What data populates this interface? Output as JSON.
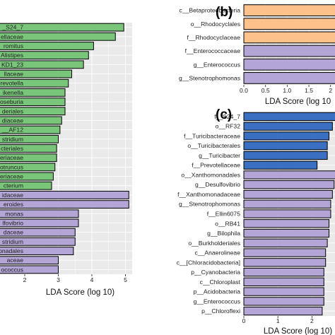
{
  "chart_data": [
    {
      "type": "bar",
      "orientation": "horizontal",
      "panel_label": "",
      "xlabel": "LDA Score (log 10)",
      "xlim": [
        0,
        5.2
      ],
      "xticks": [
        0,
        1,
        2,
        3,
        4,
        5
      ],
      "ylabel": "",
      "grid": true,
      "categories": [
        "S24_7",
        "ellaceae",
        "romitus",
        "Alistipes",
        "KD1_23",
        "llaceae",
        "revotella",
        "ikenella",
        "oseburia",
        "deriales",
        "diaceae",
        "AF12",
        "stridium",
        "cteriales",
        "acteriaceae",
        "otruncus",
        "bacteriaceae",
        "cterium",
        "idaceae",
        "eroides",
        "monas",
        "sulfovibrio",
        "daceae",
        "stridium",
        "monadales",
        "aceae",
        "coccus"
      ],
      "categories_text": [
        "_S24_7",
        "ellaceae",
        "romitus",
        "Alistipes",
        "KD1_23",
        "llaceae",
        "revotella",
        "ikenella",
        "oseburia",
        "deriales",
        "diaceae",
        "__AF12",
        "stridium",
        "cteriales",
        "acteriaceae",
        "otruncus",
        "bacteriaceae",
        "cterium",
        "idaceae",
        "eroides",
        "monas",
        "lfovibrio",
        "daceae",
        "stridium",
        "monadales",
        "aceae",
        "ococcus"
      ],
      "values": [
        4.95,
        4.7,
        4.05,
        3.9,
        3.75,
        3.4,
        3.3,
        3.2,
        3.2,
        3.2,
        3.1,
        3.05,
        3.0,
        2.95,
        2.95,
        2.9,
        2.85,
        2.8,
        5.1,
        5.1,
        3.6,
        3.6,
        3.5,
        3.5,
        3.45,
        3.0,
        3.0
      ],
      "colors": [
        "#79c67a",
        "#79c67a",
        "#79c67a",
        "#79c67a",
        "#79c67a",
        "#79c67a",
        "#79c67a",
        "#79c67a",
        "#79c67a",
        "#79c67a",
        "#79c67a",
        "#79c67a",
        "#79c67a",
        "#79c67a",
        "#79c67a",
        "#79c67a",
        "#79c67a",
        "#79c67a",
        "#b3a5d6",
        "#b3a5d6",
        "#b3a5d6",
        "#b3a5d6",
        "#b3a5d6",
        "#b3a5d6",
        "#b3a5d6",
        "#b3a5d6",
        "#b3a5d6"
      ]
    },
    {
      "type": "bar",
      "orientation": "horizontal",
      "panel_label": "(b)",
      "xlabel": "LDA Score (log 10",
      "xlim": [
        0,
        2.2
      ],
      "xticks": [
        0,
        0.5,
        1,
        1.5,
        2
      ],
      "xticklabels": [
        "0.0",
        "0.5",
        "1.0",
        "1.5",
        "2"
      ],
      "ylabel": "",
      "grid": true,
      "categories": [
        "c__Betaproteobacteria",
        "o__Rhodocyclales",
        "f__Rhodocyclaceae",
        "f__Enterococcaceae",
        "g__Enterococcus",
        "g__Stenotrophomonas"
      ],
      "values": [
        2.2,
        2.2,
        2.2,
        2.2,
        2.2,
        2.2
      ],
      "colors": [
        "#fdc18b",
        "#fdc18b",
        "#fdc18b",
        "#b3a5d6",
        "#b3a5d6",
        "#b3a5d6"
      ]
    },
    {
      "type": "bar",
      "orientation": "horizontal",
      "panel_label": "(c)",
      "xlabel": "LDA Score (log 10)",
      "xlim": [
        0,
        2.8
      ],
      "xticks": [
        0,
        1,
        2
      ],
      "ylabel": "",
      "grid": true,
      "categories": [
        "f__S24_7",
        "o__RF32",
        "f__Turicibacteraceae",
        "o__Turicibacterales",
        "g__Turicibacter",
        "f__Prevotellaceae",
        "o__Xanthomonadales",
        "g__Desulfovibrio",
        "f__Xanthomonadaceae",
        "g__Stenotrophomonas",
        "f__Ellin6075",
        "o__RB41",
        "g__Bilophila",
        "o__Burkholderiales",
        "c__Anaerolineae",
        "c__[Chloracidobacteria]",
        "p__Cyanobacteria",
        "c__Chloroplast",
        "p__Acidobacteria",
        "g__Enterococcus",
        "p__Chloroflexi"
      ],
      "values": [
        2.7,
        2.6,
        2.5,
        2.45,
        2.45,
        2.15,
        2.7,
        2.65,
        2.6,
        2.55,
        2.55,
        2.5,
        2.5,
        2.45,
        2.4,
        2.4,
        2.35,
        2.35,
        2.35,
        2.35,
        2.3
      ],
      "colors": [
        "#3a6fc2",
        "#3a6fc2",
        "#3a6fc2",
        "#3a6fc2",
        "#3a6fc2",
        "#3a6fc2",
        "#b3a5d6",
        "#b3a5d6",
        "#b3a5d6",
        "#b3a5d6",
        "#b3a5d6",
        "#b3a5d6",
        "#b3a5d6",
        "#b3a5d6",
        "#b3a5d6",
        "#b3a5d6",
        "#b3a5d6",
        "#b3a5d6",
        "#b3a5d6",
        "#b3a5d6",
        "#b3a5d6"
      ]
    }
  ],
  "colors": {
    "panel_bg": "#eaeaea",
    "grid": "#ffffff",
    "bar_border": "#000000"
  }
}
